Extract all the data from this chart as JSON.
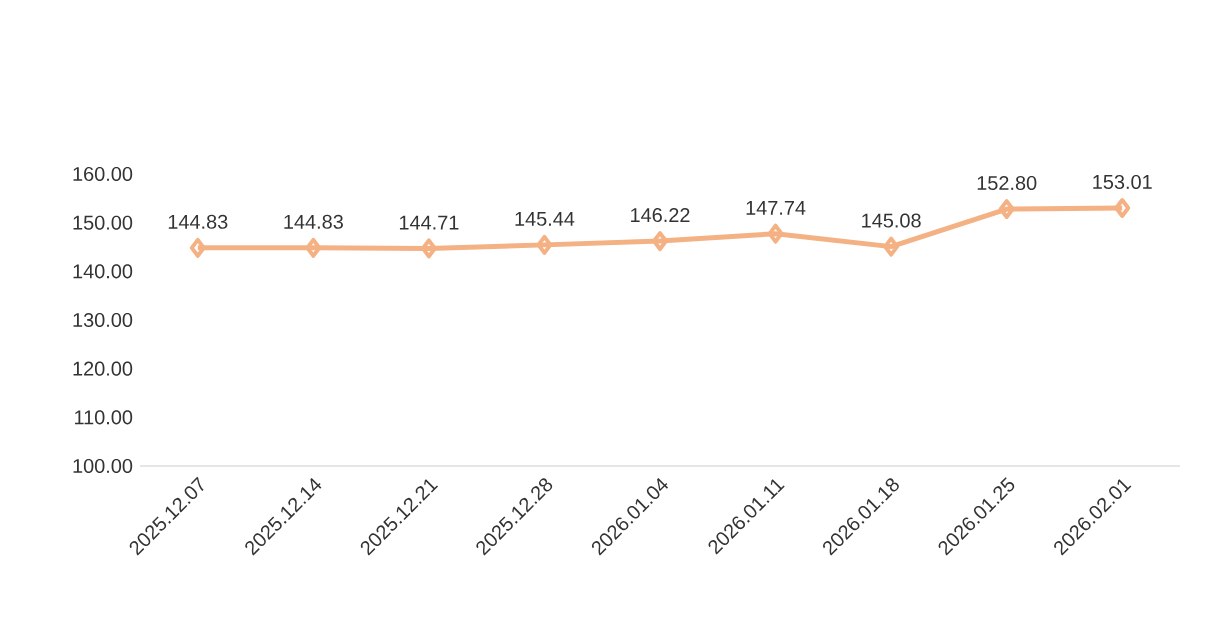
{
  "chart_data": {
    "type": "line",
    "categories": [
      "2025.12.07",
      "2025.12.14",
      "2025.12.21",
      "2025.12.28",
      "2026.01.04",
      "2026.01.11",
      "2026.01.18",
      "2026.01.25",
      "2026.02.01"
    ],
    "values": [
      144.83,
      144.83,
      144.71,
      145.44,
      146.22,
      147.74,
      145.08,
      152.8,
      153.01
    ],
    "value_labels": [
      "144.83",
      "144.83",
      "144.71",
      "145.44",
      "146.22",
      "147.74",
      "145.08",
      "152.80",
      "153.01"
    ],
    "color": "#f4b183",
    "marker": "diamond",
    "line_style": "solid",
    "grid": false,
    "ylim": [
      100,
      160
    ],
    "yticks": [
      {
        "value": 100,
        "label": "100.00"
      },
      {
        "value": 110,
        "label": "110.00"
      },
      {
        "value": 120,
        "label": "120.00"
      },
      {
        "value": 130,
        "label": "130.00"
      },
      {
        "value": 140,
        "label": "140.00"
      },
      {
        "value": 150,
        "label": "150.00"
      },
      {
        "value": 160,
        "label": "160.00"
      }
    ]
  }
}
